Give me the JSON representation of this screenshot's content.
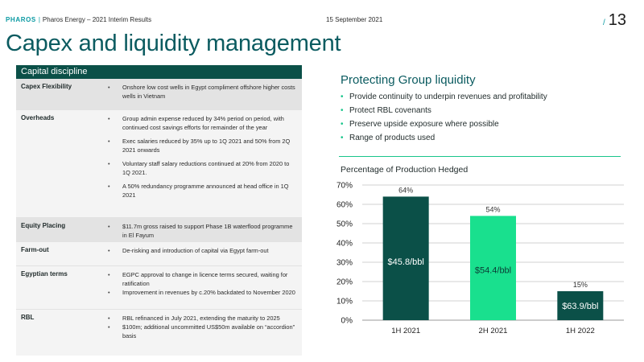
{
  "header": {
    "brand": "PHAROS",
    "subtitle": "Pharos Energy – 2021 Interim Results",
    "date": "15 September 2021",
    "page_number": "13"
  },
  "title": "Capex and liquidity management",
  "table": {
    "heading": "Capital discipline",
    "rows": [
      {
        "label": "Capex Flexibility",
        "bullets": [
          "Onshore low cost wells in Egypt compliment offshore higher costs wells in Vietnam"
        ]
      },
      {
        "label": "Overheads",
        "bullets": [
          "Group admin expense reduced by 34% period on period, with continued cost savings efforts for remainder of the year",
          "Exec salaries reduced by 35% up to 1Q 2021 and 50% from 2Q 2021 onwards",
          "Voluntary staff salary reductions continued at 20% from 2020 to 1Q 2021.",
          "A 50% redundancy programme announced at head office in 1Q 2021"
        ]
      },
      {
        "label": "Equity Placing",
        "bullets": [
          "$11.7m gross raised to support Phase 1B waterflood programme in El Fayum"
        ]
      },
      {
        "label": "Farm-out",
        "bullets": [
          "De-risking and introduction of capital via Egypt farm-out"
        ]
      },
      {
        "label": "Egyptian terms",
        "bullets": [
          "EGPC approval to change in licence terms secured, waiting for ratification",
          "Improvement in revenues by c.20% backdated to November 2020"
        ]
      },
      {
        "label": "RBL",
        "bullets": [
          "RBL refinanced in July 2021, extending the maturity to 2025",
          "$100m; additional uncommitted US$50m available on “accordion” basis"
        ]
      }
    ]
  },
  "liquidity": {
    "title": "Protecting Group liquidity",
    "bullets": [
      "Provide continuity to underpin revenues and profitability",
      "Protect RBL covenants",
      "Preserve upside exposure where possible",
      "Range of products used"
    ]
  },
  "colors": {
    "dark_teal": "#0b5048",
    "green": "#19c58b",
    "accent": "#0b9aa3"
  },
  "chart_data": {
    "type": "bar",
    "title": "Percentage of Production Hedged",
    "categories": [
      "1H 2021",
      "2H 2021",
      "1H 2022"
    ],
    "values": [
      64,
      54,
      15
    ],
    "value_labels": [
      "64%",
      "54%",
      "15%"
    ],
    "price_labels": [
      "$45.8/bbl",
      "$54.4/bbl",
      "$63.9/bbl"
    ],
    "bar_colors": [
      "#0b5048",
      "#19e08e",
      "#0b5048"
    ],
    "ylim": [
      0,
      70
    ],
    "yticks": [
      0,
      10,
      20,
      30,
      40,
      50,
      60,
      70
    ],
    "ytick_labels": [
      "0%",
      "10%",
      "20%",
      "30%",
      "40%",
      "50%",
      "60%",
      "70%"
    ],
    "grid": true
  }
}
